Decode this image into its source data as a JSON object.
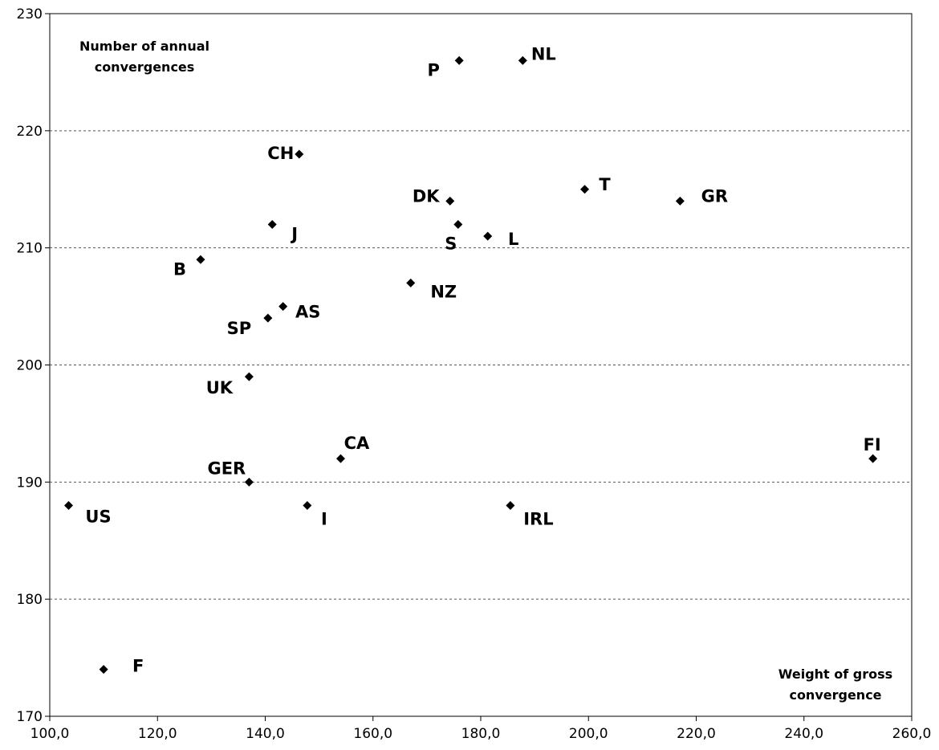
{
  "chart_data": {
    "type": "scatter",
    "title": "",
    "ylabel": [
      "Number of annual",
      "convergences"
    ],
    "xlabel": [
      "Weight of gross",
      "convergence"
    ],
    "xlim": [
      100,
      260
    ],
    "ylim": [
      170,
      230
    ],
    "xticks": [
      "100,0",
      "120,0",
      "140,0",
      "160,0",
      "180,0",
      "200,0",
      "220,0",
      "240,0",
      "260,0"
    ],
    "yticks": [
      "170",
      "180",
      "190",
      "200",
      "210",
      "220",
      "230"
    ],
    "grid": "horizontal dashed",
    "marker": "diamond",
    "marker_color": "#000000",
    "points": [
      {
        "label": "P",
        "x": 176.0,
        "y": 226
      },
      {
        "label": "NL",
        "x": 187.8,
        "y": 226
      },
      {
        "label": "CH",
        "x": 146.3,
        "y": 218
      },
      {
        "label": "DK",
        "x": 174.3,
        "y": 214
      },
      {
        "label": "T",
        "x": 199.3,
        "y": 215
      },
      {
        "label": "GR",
        "x": 217.0,
        "y": 214
      },
      {
        "label": "J",
        "x": 141.3,
        "y": 212
      },
      {
        "label": "S",
        "x": 175.8,
        "y": 212
      },
      {
        "label": "L",
        "x": 181.3,
        "y": 211
      },
      {
        "label": "B",
        "x": 128.0,
        "y": 209
      },
      {
        "label": "NZ",
        "x": 167.0,
        "y": 207
      },
      {
        "label": "AS",
        "x": 143.3,
        "y": 205
      },
      {
        "label": "SP",
        "x": 140.5,
        "y": 204
      },
      {
        "label": "UK",
        "x": 137.0,
        "y": 199
      },
      {
        "label": "CA",
        "x": 154.0,
        "y": 192
      },
      {
        "label": "FI",
        "x": 252.8,
        "y": 192
      },
      {
        "label": "GER",
        "x": 137.0,
        "y": 190
      },
      {
        "label": "US",
        "x": 103.5,
        "y": 188
      },
      {
        "label": "I",
        "x": 147.8,
        "y": 188
      },
      {
        "label": "IRL",
        "x": 185.5,
        "y": 188
      },
      {
        "label": "F",
        "x": 110.0,
        "y": 174
      }
    ]
  }
}
